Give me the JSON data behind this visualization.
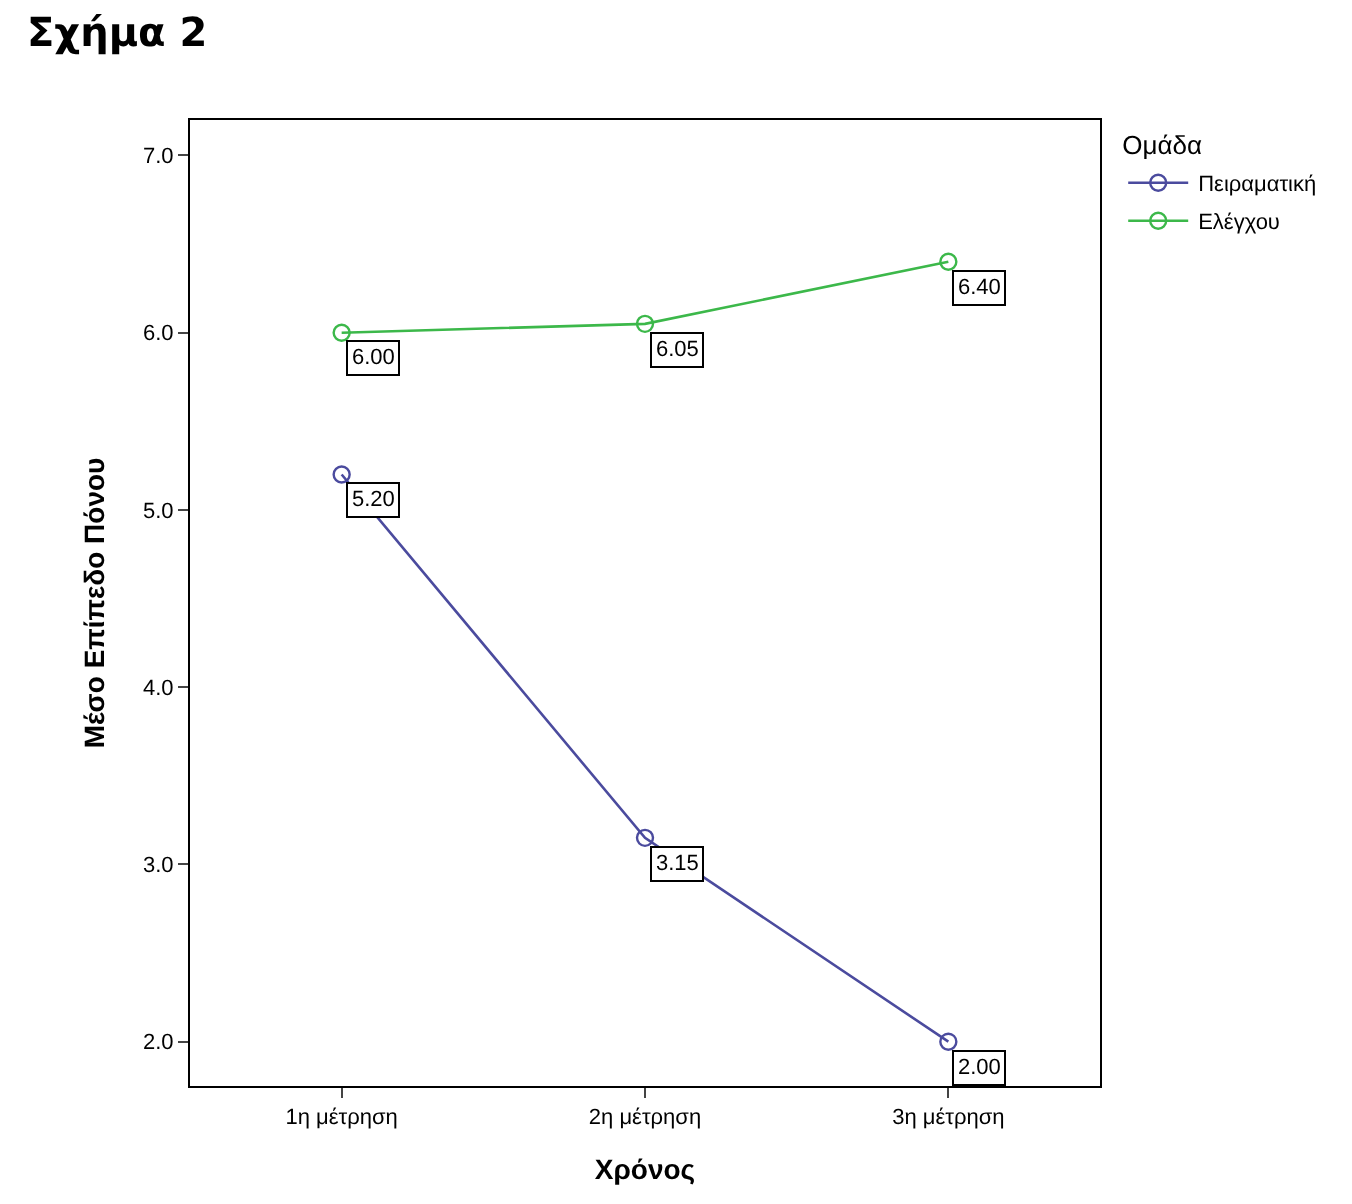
{
  "chart_data": {
    "type": "line",
    "title": "Σχήμα 2",
    "xlabel": "Χρόνος",
    "ylabel": "Μέσο Επίπεδο Πόνου",
    "legend_title": "Ομάδα",
    "categories": [
      "1η μέτρηση",
      "2η μέτρηση",
      "3η μέτρηση"
    ],
    "series": [
      {
        "name": "Πειραματική",
        "color": "#4b4b9e",
        "values": [
          5.2,
          3.15,
          2.0
        ],
        "value_labels": [
          "5.20",
          "3.15",
          "2.00"
        ]
      },
      {
        "name": "Ελέγχου",
        "color": "#3cb84a",
        "values": [
          6.0,
          6.05,
          6.4
        ],
        "value_labels": [
          "6.00",
          "6.05",
          "6.40"
        ]
      }
    ],
    "ylim": [
      1.75,
      7.2
    ],
    "yticks": [
      {
        "value": 2,
        "label": "2.0"
      },
      {
        "value": 3,
        "label": "3.0"
      },
      {
        "value": 4,
        "label": "4.0"
      },
      {
        "value": 5,
        "label": "5.0"
      },
      {
        "value": 6,
        "label": "6.0"
      },
      {
        "value": 7,
        "label": "7.0"
      }
    ],
    "legend": "top right",
    "marker": "circle",
    "line_style": "solid"
  }
}
